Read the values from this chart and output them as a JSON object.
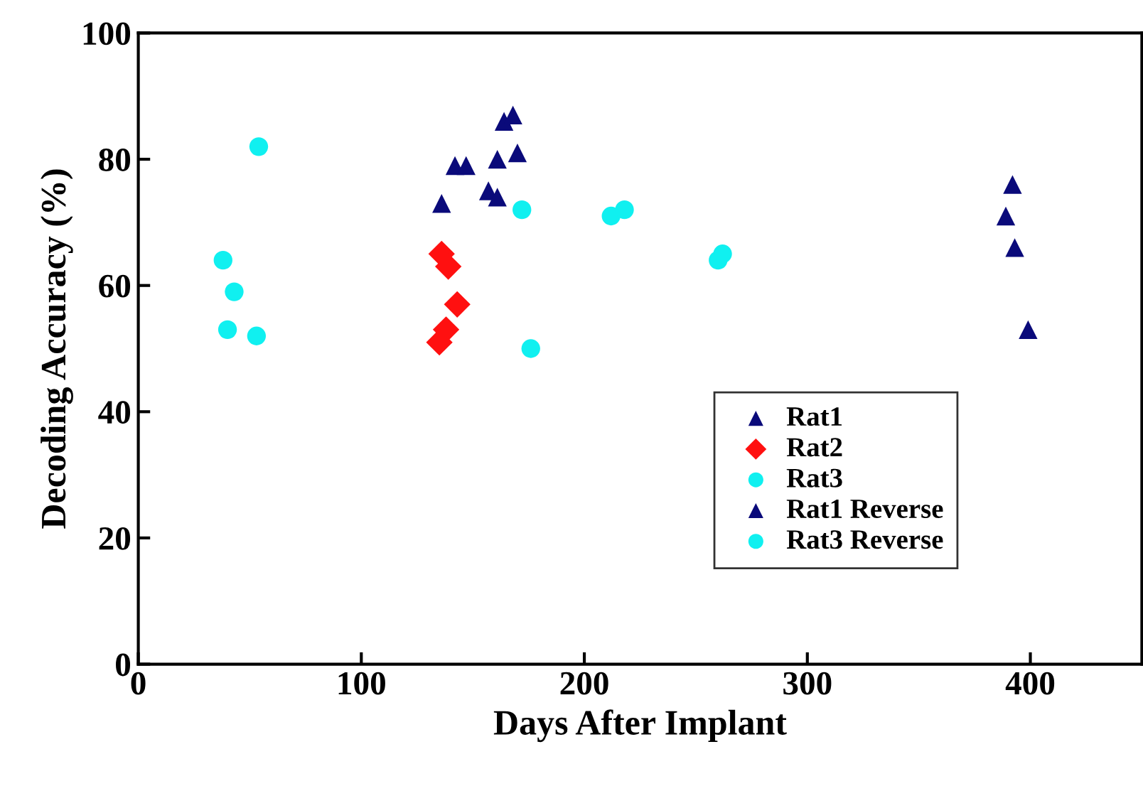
{
  "chart_data": {
    "type": "scatter",
    "xlabel": "Days After Implant",
    "ylabel": "Decoding Accuracy (%)",
    "xlim": [
      0,
      450
    ],
    "ylim": [
      0,
      100
    ],
    "xticks": [
      0,
      100,
      200,
      300,
      400
    ],
    "yticks": [
      0,
      20,
      40,
      60,
      80,
      100
    ],
    "grid": false,
    "legend": "bottom right",
    "series": [
      {
        "name": "Rat1",
        "color": "#0a0a7a",
        "marker": "triangle",
        "x": [
          136,
          142,
          147,
          157,
          161,
          161,
          164,
          168,
          170
        ],
        "values": [
          73,
          79,
          79,
          75,
          74,
          80,
          86,
          87,
          81
        ]
      },
      {
        "name": "Rat2",
        "color": "#ff1010",
        "marker": "diamond",
        "x": [
          136,
          139,
          143,
          138,
          135
        ],
        "values": [
          65,
          63,
          57,
          53,
          51
        ]
      },
      {
        "name": "Rat3",
        "color": "#10f0f0",
        "marker": "circle",
        "x": [
          54,
          38,
          43,
          40,
          53,
          212,
          218,
          260,
          262
        ],
        "values": [
          82,
          64,
          59,
          53,
          52,
          71,
          72,
          64,
          65
        ]
      },
      {
        "name": "Rat1 Reverse",
        "color": "#0a0a7a",
        "marker": "triangle",
        "x": [
          392,
          389,
          393,
          399
        ],
        "values": [
          76,
          71,
          66,
          53
        ]
      },
      {
        "name": "Rat3 Reverse",
        "color": "#10f0f0",
        "marker": "circle",
        "x": [
          172,
          176
        ],
        "values": [
          72,
          50
        ]
      }
    ]
  }
}
